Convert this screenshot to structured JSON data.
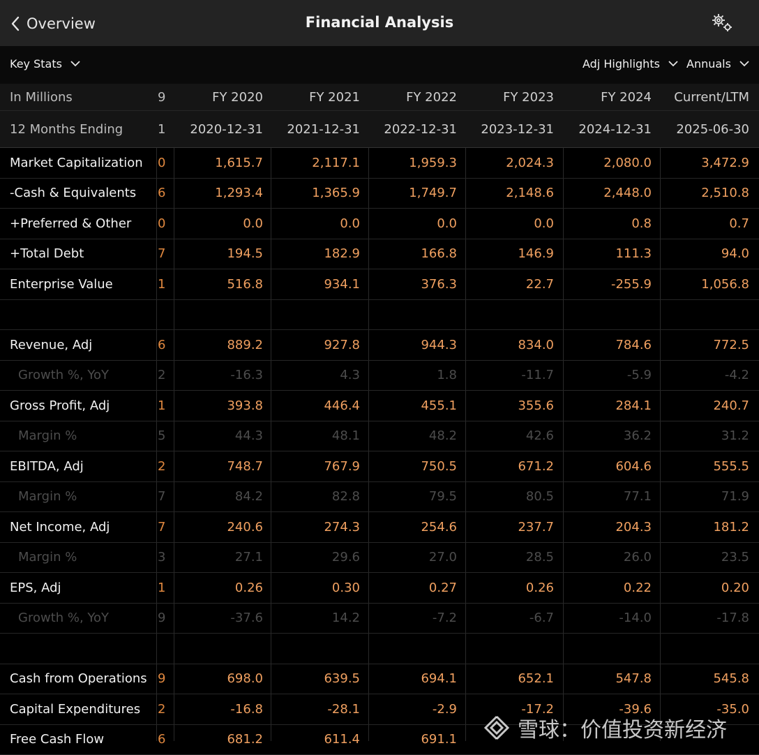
{
  "header": {
    "back_label": "Overview",
    "title": "Financial Analysis"
  },
  "toolbar": {
    "key_stats": "Key Stats",
    "highlights": "Adj Highlights",
    "period": "Annuals"
  },
  "columns": {
    "units_label": "In Millions",
    "units_idx": "9",
    "ending_label": "12 Months Ending",
    "ending_idx": "1",
    "fiscal_years": [
      "FY 2020",
      "FY 2021",
      "FY 2022",
      "FY 2023",
      "FY 2024",
      "Current/LTM"
    ],
    "end_dates": [
      "2020-12-31",
      "2021-12-31",
      "2022-12-31",
      "2023-12-31",
      "2024-12-31",
      "2025-06-30"
    ]
  },
  "rows": [
    {
      "label": "Market Capitalization",
      "idx": "0",
      "values": [
        "1,615.7",
        "2,117.1",
        "1,959.3",
        "2,024.3",
        "2,080.0",
        "3,472.9"
      ]
    },
    {
      "label": "-Cash & Equivalents",
      "idx": "6",
      "values": [
        "1,293.4",
        "1,365.9",
        "1,749.7",
        "2,148.6",
        "2,448.0",
        "2,510.8"
      ]
    },
    {
      "label": "+Preferred & Other",
      "idx": "0",
      "values": [
        "0.0",
        "0.0",
        "0.0",
        "0.0",
        "0.8",
        "0.7"
      ]
    },
    {
      "label": "+Total Debt",
      "idx": "7",
      "values": [
        "194.5",
        "182.9",
        "166.8",
        "146.9",
        "111.3",
        "94.0"
      ]
    },
    {
      "label": "Enterprise Value",
      "idx": "1",
      "values": [
        "516.8",
        "934.1",
        "376.3",
        "22.7",
        "-255.9",
        "1,056.8"
      ]
    },
    {
      "label": "Revenue, Adj",
      "idx": "6",
      "values": [
        "889.2",
        "927.8",
        "944.3",
        "834.0",
        "784.6",
        "772.5"
      ]
    },
    {
      "label": "Growth %, YoY",
      "idx": "2",
      "values": [
        "-16.3",
        "4.3",
        "1.8",
        "-11.7",
        "-5.9",
        "-4.2"
      ]
    },
    {
      "label": "Gross Profit, Adj",
      "idx": "1",
      "values": [
        "393.8",
        "446.4",
        "455.1",
        "355.6",
        "284.1",
        "240.7"
      ]
    },
    {
      "label": "Margin %",
      "idx": "5",
      "values": [
        "44.3",
        "48.1",
        "48.2",
        "42.6",
        "36.2",
        "31.2"
      ]
    },
    {
      "label": "EBITDA, Adj",
      "idx": "2",
      "values": [
        "748.7",
        "767.9",
        "750.5",
        "671.2",
        "604.6",
        "555.5"
      ]
    },
    {
      "label": "Margin %",
      "idx": "7",
      "values": [
        "84.2",
        "82.8",
        "79.5",
        "80.5",
        "77.1",
        "71.9"
      ]
    },
    {
      "label": "Net Income, Adj",
      "idx": "7",
      "values": [
        "240.6",
        "274.3",
        "254.6",
        "237.7",
        "204.3",
        "181.2"
      ]
    },
    {
      "label": "Margin %",
      "idx": "3",
      "values": [
        "27.1",
        "29.6",
        "27.0",
        "28.5",
        "26.0",
        "23.5"
      ]
    },
    {
      "label": "EPS, Adj",
      "idx": "1",
      "values": [
        "0.26",
        "0.30",
        "0.27",
        "0.26",
        "0.22",
        "0.20"
      ]
    },
    {
      "label": "Growth %, YoY",
      "idx": "9",
      "values": [
        "-37.6",
        "14.2",
        "-7.2",
        "-6.7",
        "-14.0",
        "-17.8"
      ]
    },
    {
      "label": "Cash from Operations",
      "idx": "9",
      "values": [
        "698.0",
        "639.5",
        "694.1",
        "652.1",
        "547.8",
        "545.8"
      ]
    },
    {
      "label": "Capital Expenditures",
      "idx": "2",
      "values": [
        "-16.8",
        "-28.1",
        "-2.9",
        "-17.2",
        "-39.6",
        "-35.0"
      ]
    },
    {
      "label": "Free Cash Flow",
      "idx": "6",
      "values": [
        "681.2",
        "611.4",
        "691.1",
        "",
        "",
        ""
      ]
    }
  ],
  "watermark": {
    "text": "雪球：价值投资新经济"
  }
}
